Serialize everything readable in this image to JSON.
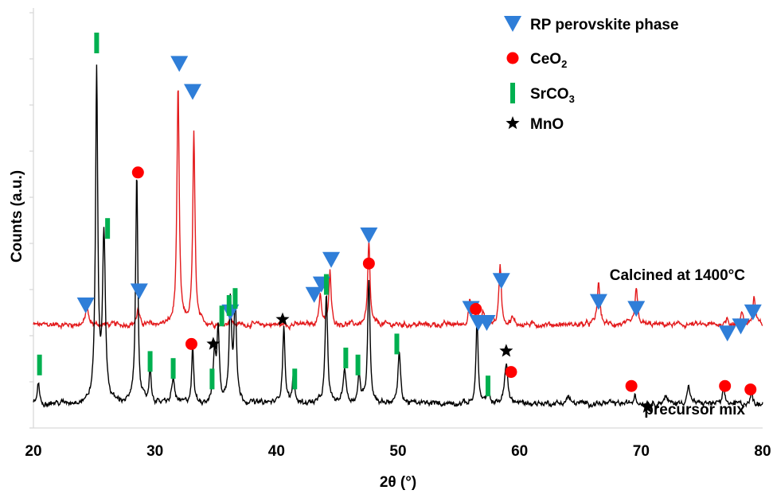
{
  "chart_data": {
    "type": "line",
    "title": "",
    "xlabel": "2θ (°)",
    "ylabel": "Counts (a.u.)",
    "xlim": [
      20,
      80
    ],
    "xticks": [
      20,
      30,
      40,
      50,
      60,
      70,
      80
    ],
    "y_tick_labels_shown": false,
    "grid": "none",
    "legend_position": "top-right",
    "legend": [
      {
        "label": "RP perovskite phase",
        "marker": "triangle-down",
        "color": "#2f7ed8"
      },
      {
        "label": "CeO",
        "sub": "2",
        "marker": "circle",
        "color": "#ff0000"
      },
      {
        "label": "SrCO",
        "sub": "3",
        "marker": "bar",
        "color": "#00b050"
      },
      {
        "label": "MnO",
        "marker": "star",
        "color": "#000000"
      }
    ],
    "series": [
      {
        "name": "Calcined at 1400°C",
        "color": "#e31a1c",
        "baseline": 29.5,
        "noise": 0.6,
        "peaks": [
          {
            "x": 24.4,
            "h": 5.5,
            "w": 0.12
          },
          {
            "x": 28.6,
            "h": 4.5,
            "w": 0.12
          },
          {
            "x": 31.9,
            "h": 68,
            "w": 0.11
          },
          {
            "x": 33.2,
            "h": 54,
            "w": 0.11
          },
          {
            "x": 36.2,
            "h": 2.5,
            "w": 0.12
          },
          {
            "x": 43.6,
            "h": 9,
            "w": 0.12
          },
          {
            "x": 44.4,
            "h": 15,
            "w": 0.11
          },
          {
            "x": 47.6,
            "h": 23,
            "w": 0.11
          },
          {
            "x": 55.9,
            "h": 7,
            "w": 0.12
          },
          {
            "x": 56.5,
            "h": 4,
            "w": 0.12
          },
          {
            "x": 57.0,
            "h": 3.5,
            "w": 0.12
          },
          {
            "x": 58.4,
            "h": 17,
            "w": 0.12
          },
          {
            "x": 59.4,
            "h": 2,
            "w": 0.12
          },
          {
            "x": 66.5,
            "h": 12,
            "w": 0.13
          },
          {
            "x": 69.6,
            "h": 10,
            "w": 0.13
          },
          {
            "x": 77.1,
            "h": 2,
            "w": 0.12
          },
          {
            "x": 78.3,
            "h": 4,
            "w": 0.12
          },
          {
            "x": 79.3,
            "h": 8,
            "w": 0.12
          }
        ]
      },
      {
        "name": "precursor mix",
        "color": "#000000",
        "baseline": 7,
        "noise": 0.6,
        "peaks": [
          {
            "x": 20.4,
            "h": 6,
            "w": 0.1
          },
          {
            "x": 25.2,
            "h": 94,
            "w": 0.11
          },
          {
            "x": 25.8,
            "h": 47,
            "w": 0.14
          },
          {
            "x": 28.5,
            "h": 65,
            "w": 0.11
          },
          {
            "x": 29.6,
            "h": 10,
            "w": 0.1
          },
          {
            "x": 31.5,
            "h": 7,
            "w": 0.14
          },
          {
            "x": 33.1,
            "h": 16,
            "w": 0.1
          },
          {
            "x": 34.9,
            "h": 14,
            "w": 0.12
          },
          {
            "x": 35.2,
            "h": 20,
            "w": 0.12
          },
          {
            "x": 36.2,
            "h": 29,
            "w": 0.12
          },
          {
            "x": 36.6,
            "h": 30,
            "w": 0.12
          },
          {
            "x": 40.6,
            "h": 22,
            "w": 0.12
          },
          {
            "x": 41.4,
            "h": 8,
            "w": 0.1
          },
          {
            "x": 44.1,
            "h": 31,
            "w": 0.12
          },
          {
            "x": 45.6,
            "h": 10,
            "w": 0.14
          },
          {
            "x": 46.8,
            "h": 8,
            "w": 0.12
          },
          {
            "x": 47.6,
            "h": 35,
            "w": 0.12
          },
          {
            "x": 50.1,
            "h": 15,
            "w": 0.12
          },
          {
            "x": 56.5,
            "h": 25,
            "w": 0.1
          },
          {
            "x": 57.4,
            "h": 3,
            "w": 0.12
          },
          {
            "x": 58.9,
            "h": 11,
            "w": 0.16
          },
          {
            "x": 64.0,
            "h": 2,
            "w": 0.15
          },
          {
            "x": 69.5,
            "h": 3,
            "w": 0.1
          },
          {
            "x": 72.0,
            "h": 2,
            "w": 0.15
          },
          {
            "x": 73.9,
            "h": 5,
            "w": 0.14
          },
          {
            "x": 76.8,
            "h": 4,
            "w": 0.1
          },
          {
            "x": 79.1,
            "h": 3,
            "w": 0.1
          }
        ]
      }
    ],
    "series_labels": [
      {
        "text": "Calcined at 1400°C",
        "series": 0
      },
      {
        "text": "precursor mix",
        "series": 1
      }
    ],
    "markers": [
      {
        "type": "rp",
        "x": 24.3,
        "y": 35
      },
      {
        "type": "rp",
        "x": 28.7,
        "y": 39
      },
      {
        "type": "rp",
        "x": 32.0,
        "y": 104
      },
      {
        "type": "rp",
        "x": 33.1,
        "y": 96
      },
      {
        "type": "rp",
        "x": 36.2,
        "y": 33
      },
      {
        "type": "rp",
        "x": 43.1,
        "y": 38
      },
      {
        "type": "rp",
        "x": 43.7,
        "y": 41
      },
      {
        "type": "rp",
        "x": 44.5,
        "y": 48
      },
      {
        "type": "rp",
        "x": 47.6,
        "y": 55
      },
      {
        "type": "rp",
        "x": 56.0,
        "y": 34
      },
      {
        "type": "rp",
        "x": 56.6,
        "y": 30
      },
      {
        "type": "rp",
        "x": 57.3,
        "y": 30
      },
      {
        "type": "rp",
        "x": 58.5,
        "y": 42
      },
      {
        "type": "rp",
        "x": 66.5,
        "y": 36
      },
      {
        "type": "rp",
        "x": 69.6,
        "y": 34
      },
      {
        "type": "rp",
        "x": 77.1,
        "y": 27
      },
      {
        "type": "rp",
        "x": 78.2,
        "y": 29
      },
      {
        "type": "rp",
        "x": 79.2,
        "y": 33
      },
      {
        "type": "ceo2",
        "x": 28.6,
        "y": 73
      },
      {
        "type": "ceo2",
        "x": 33.0,
        "y": 24
      },
      {
        "type": "ceo2",
        "x": 47.6,
        "y": 47
      },
      {
        "type": "ceo2",
        "x": 56.4,
        "y": 34
      },
      {
        "type": "ceo2",
        "x": 59.3,
        "y": 16
      },
      {
        "type": "ceo2",
        "x": 69.2,
        "y": 12
      },
      {
        "type": "ceo2",
        "x": 76.9,
        "y": 12
      },
      {
        "type": "ceo2",
        "x": 79.0,
        "y": 11
      },
      {
        "type": "srco3",
        "x": 20.5,
        "y": 18
      },
      {
        "type": "srco3",
        "x": 25.2,
        "y": 110
      },
      {
        "type": "srco3",
        "x": 26.1,
        "y": 57
      },
      {
        "type": "srco3",
        "x": 29.6,
        "y": 19
      },
      {
        "type": "srco3",
        "x": 31.5,
        "y": 17
      },
      {
        "type": "srco3",
        "x": 34.7,
        "y": 14
      },
      {
        "type": "srco3",
        "x": 35.5,
        "y": 32
      },
      {
        "type": "srco3",
        "x": 36.1,
        "y": 35
      },
      {
        "type": "srco3",
        "x": 36.6,
        "y": 37
      },
      {
        "type": "srco3",
        "x": 41.5,
        "y": 14
      },
      {
        "type": "srco3",
        "x": 44.1,
        "y": 41
      },
      {
        "type": "srco3",
        "x": 45.7,
        "y": 20
      },
      {
        "type": "srco3",
        "x": 46.7,
        "y": 18
      },
      {
        "type": "srco3",
        "x": 49.9,
        "y": 24
      },
      {
        "type": "srco3",
        "x": 57.4,
        "y": 12
      },
      {
        "type": "mno",
        "x": 34.8,
        "y": 24
      },
      {
        "type": "mno",
        "x": 40.5,
        "y": 31
      },
      {
        "type": "mno",
        "x": 58.9,
        "y": 22
      },
      {
        "type": "mno",
        "x": 70.5,
        "y": 6
      }
    ]
  }
}
